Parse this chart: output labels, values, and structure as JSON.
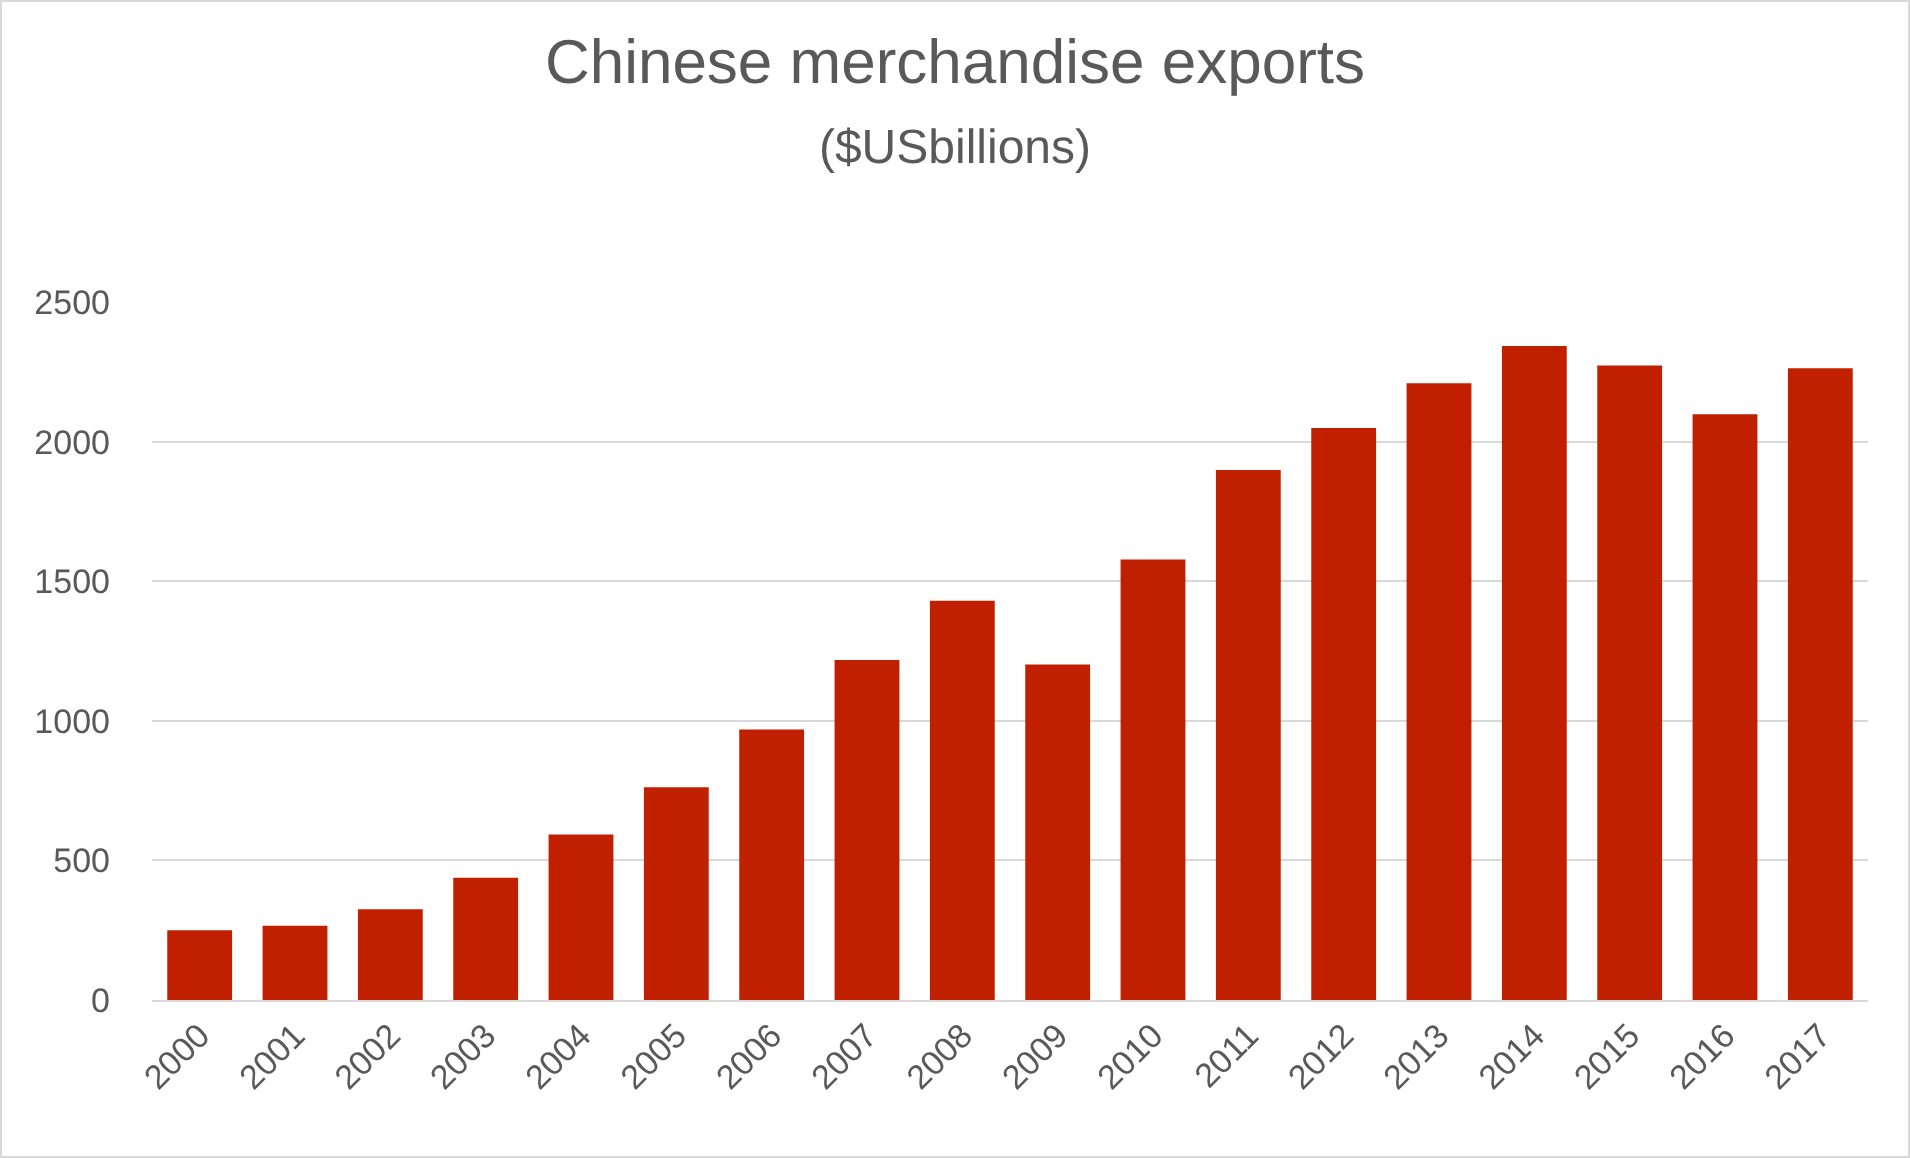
{
  "chart_data": {
    "type": "bar",
    "title": "Chinese merchandise exports",
    "subtitle": "($USbillions)",
    "categories": [
      "2000",
      "2001",
      "2002",
      "2003",
      "2004",
      "2005",
      "2006",
      "2007",
      "2008",
      "2009",
      "2010",
      "2011",
      "2012",
      "2013",
      "2014",
      "2015",
      "2016",
      "2017"
    ],
    "values": [
      250,
      266,
      325,
      438,
      593,
      762,
      969,
      1218,
      1430,
      1202,
      1578,
      1898,
      2049,
      2209,
      2342,
      2273,
      2098,
      2263
    ],
    "color": "#c02000",
    "ylim": [
      0,
      2500
    ],
    "yticks": [
      0,
      500,
      1000,
      1500,
      2000,
      2500
    ],
    "grid": "y"
  }
}
